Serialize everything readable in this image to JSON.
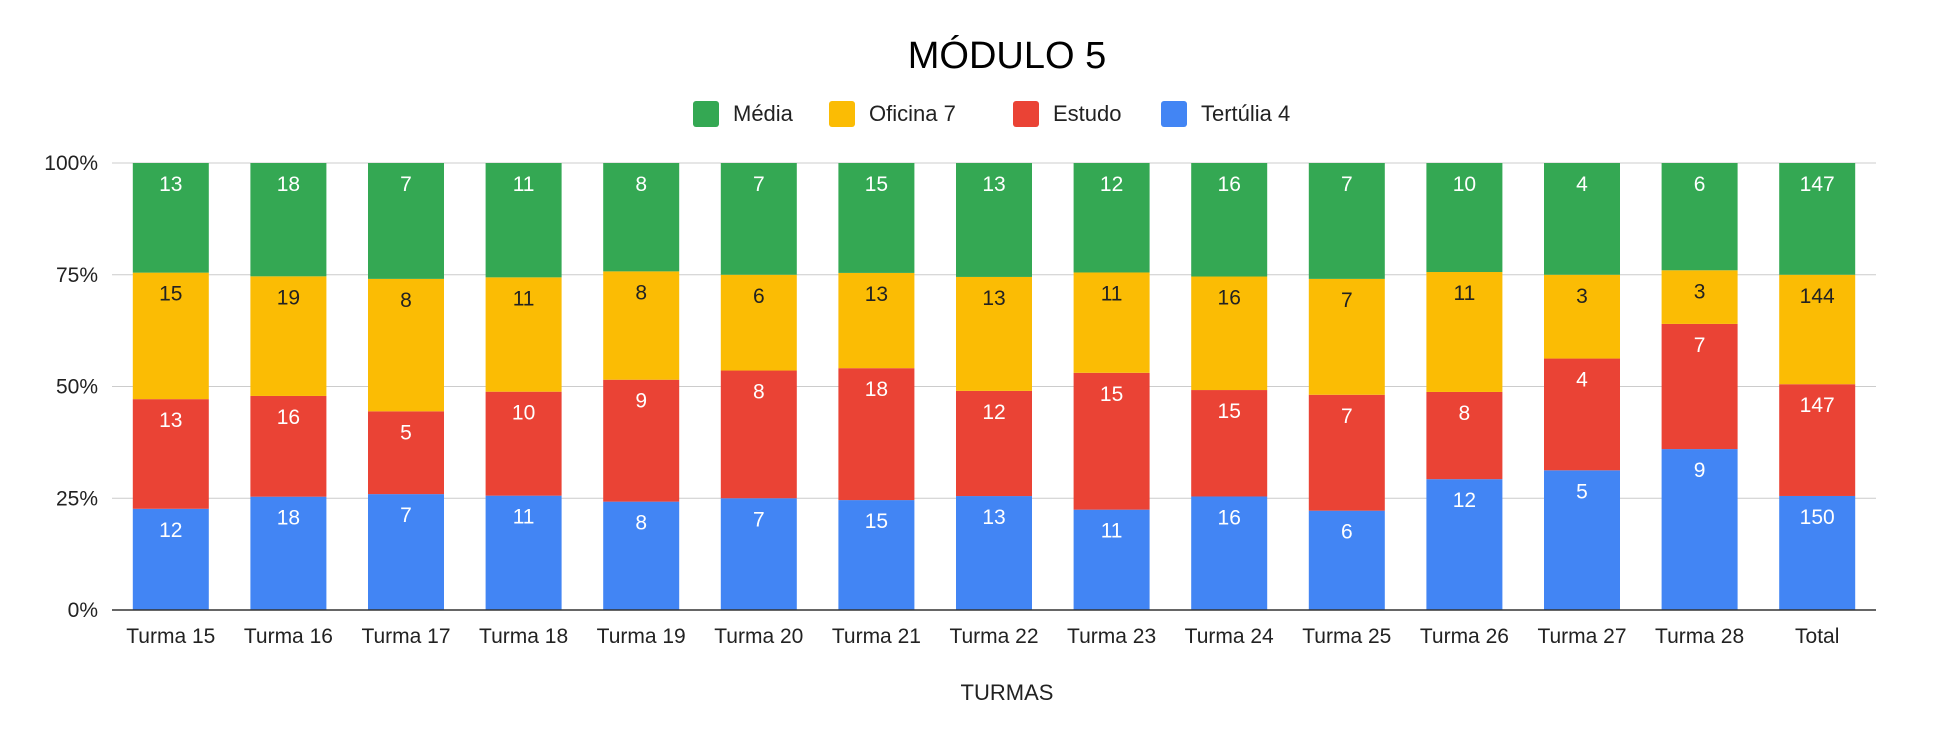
{
  "chart_data": {
    "type": "bar",
    "stacking": "percent",
    "title": "MÓDULO 5",
    "xlabel": "TURMAS",
    "ylabel": "",
    "ylim": [
      0,
      100
    ],
    "y_ticks": [
      "0%",
      "25%",
      "50%",
      "75%",
      "100%"
    ],
    "legend_position": "top",
    "grid": true,
    "categories": [
      "Turma 15",
      "Turma 16",
      "Turma 17",
      "Turma 18",
      "Turma 19",
      "Turma 20",
      "Turma 21",
      "Turma 22",
      "Turma 23",
      "Turma 24",
      "Turma 25",
      "Turma 26",
      "Turma 27",
      "Turma 28",
      "Total"
    ],
    "series": [
      {
        "name": "Tertúlia 4",
        "color": "#4285F4",
        "label_color": "#ffffff",
        "values": [
          12,
          18,
          7,
          11,
          8,
          7,
          15,
          13,
          11,
          16,
          6,
          12,
          5,
          9,
          150
        ]
      },
      {
        "name": "Estudo",
        "color": "#EA4335",
        "label_color": "#ffffff",
        "values": [
          13,
          16,
          5,
          10,
          9,
          8,
          18,
          12,
          15,
          15,
          7,
          8,
          4,
          7,
          147
        ]
      },
      {
        "name": "Oficina 7",
        "color": "#FBBC04",
        "label_color": "#222222",
        "values": [
          15,
          19,
          8,
          11,
          8,
          6,
          13,
          13,
          11,
          16,
          7,
          11,
          3,
          3,
          144
        ]
      },
      {
        "name": "Média",
        "color": "#34A853",
        "label_color": "#ffffff",
        "values": [
          13,
          18,
          7,
          11,
          8,
          7,
          15,
          13,
          12,
          16,
          7,
          10,
          4,
          6,
          147
        ]
      }
    ],
    "legend_order": [
      "Média",
      "Oficina 7",
      "Estudo",
      "Tertúlia 4"
    ]
  }
}
